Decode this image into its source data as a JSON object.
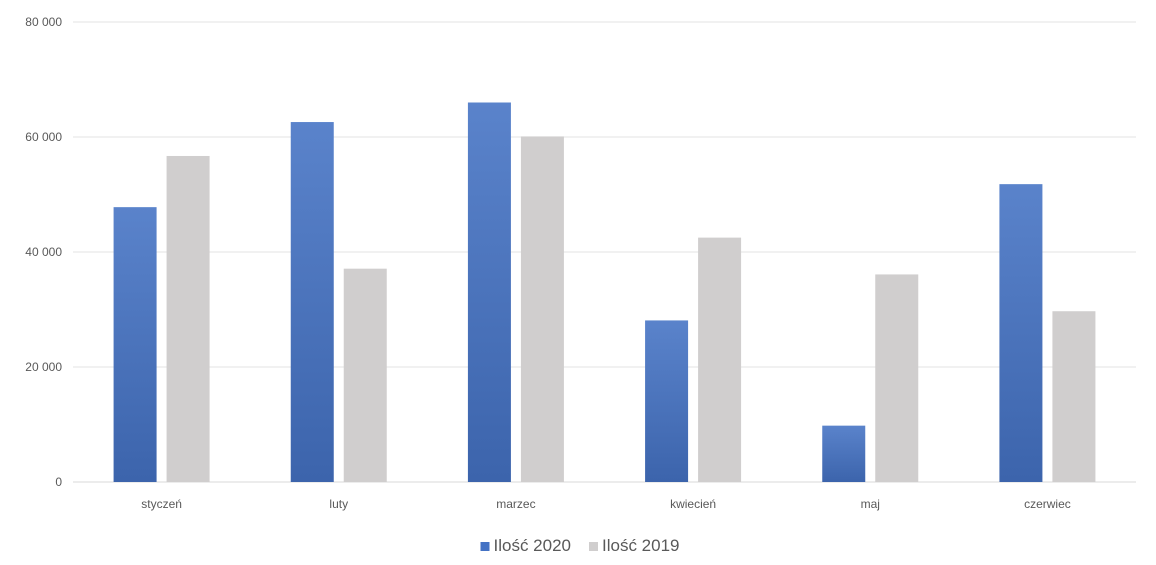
{
  "chart_data": {
    "type": "bar",
    "categories": [
      "styczeń",
      "luty",
      "marzec",
      "kwiecień",
      "maj",
      "czerwiec"
    ],
    "series": [
      {
        "name": "Ilość 2020",
        "color": "#4472C4",
        "values": [
          47800,
          62600,
          66000,
          28100,
          9800,
          51800
        ]
      },
      {
        "name": "Ilość 2019",
        "color": "#D0CECE",
        "values": [
          56700,
          37100,
          60100,
          42500,
          36100,
          29700
        ]
      }
    ],
    "ylim": [
      0,
      80000
    ],
    "y_ticks": [
      0,
      20000,
      40000,
      60000,
      80000
    ],
    "y_tick_labels": [
      "0",
      "20 000",
      "40 000",
      "60 000",
      "80 000"
    ],
    "grid": true,
    "legend_position": "bottom"
  }
}
